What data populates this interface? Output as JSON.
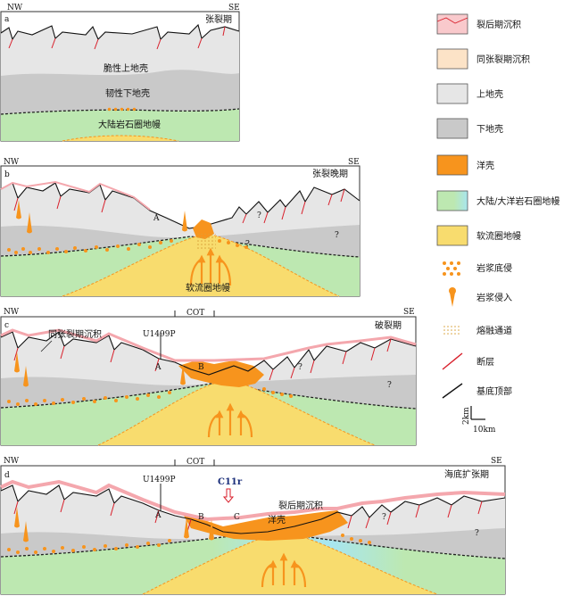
{
  "panels": {
    "a": {
      "letter": "a",
      "left": "NW",
      "right": "SE",
      "stage": "张裂期",
      "labels": {
        "upper_crust": "脆性上地壳",
        "lower_crust": "韧性下地壳",
        "mantle": "大陆岩石圈地幔"
      }
    },
    "b": {
      "letter": "b",
      "left": "NW",
      "right": "SE",
      "stage": "张裂晚期",
      "labels": {
        "A": "A",
        "q1": "?",
        "q2": "?",
        "q3": "?",
        "asthenosphere": "软流圈地幔"
      }
    },
    "c": {
      "letter": "c",
      "left": "NW",
      "right": "SE",
      "stage": "破裂期",
      "labels": {
        "cot": "COT",
        "site": "U1499P",
        "synrift": "同张裂期沉积",
        "A": "A",
        "B": "B",
        "q1": "?",
        "q2": "?"
      }
    },
    "d": {
      "letter": "d",
      "left": "NW",
      "right": "SE",
      "stage": "海底扩张期",
      "labels": {
        "cot": "COT",
        "site": "U1499P",
        "magnetic": "C11r",
        "postrift": "裂后期沉积",
        "oceanic": "洋壳",
        "A": "A",
        "B": "B",
        "C": "C",
        "q1": "?",
        "q2": "?"
      }
    }
  },
  "legend": [
    {
      "label": "裂后期沉积",
      "color": "#f9c9cc"
    },
    {
      "label": "同张裂期沉积",
      "color": "#fce3c7"
    },
    {
      "label": "上地壳",
      "color": "#e6e6e6"
    },
    {
      "label": "下地壳",
      "color": "#c9c9c9"
    },
    {
      "label": "洋壳",
      "color": "#f7941d"
    },
    {
      "label": "大陆/大洋岩石圈地幔",
      "color": "#bde8b1"
    },
    {
      "label": "软流圈地幔",
      "color": "#f8dc6e"
    },
    {
      "label": "岩浆底侵",
      "icon": "underplating-dots-icon"
    },
    {
      "label": "岩浆侵入",
      "icon": "intrusion-drop-icon"
    },
    {
      "label": "熔融通道",
      "icon": "melt-channel-icon"
    },
    {
      "label": "断层",
      "icon": "fault-line-icon"
    },
    {
      "label": "基底顶部",
      "icon": "basement-top-line-icon"
    }
  ],
  "scale": {
    "vertical": "2km",
    "horizontal": "10km"
  }
}
